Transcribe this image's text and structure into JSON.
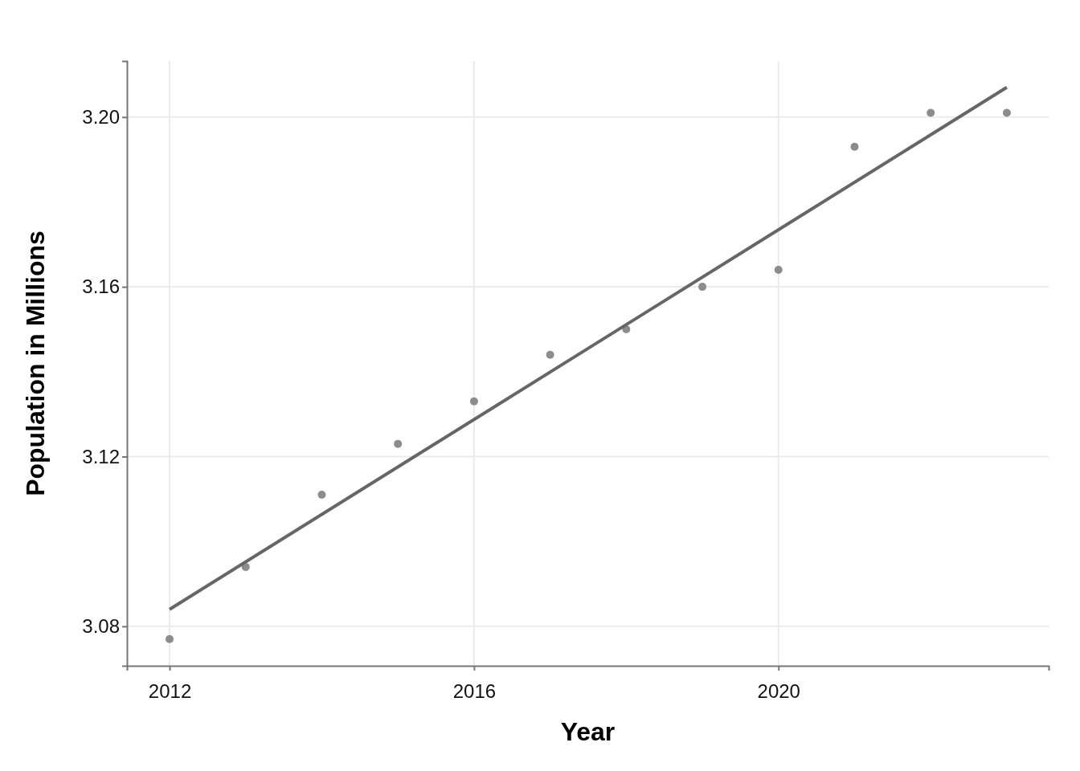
{
  "chart_data": {
    "type": "scatter",
    "xlabel": "Year",
    "ylabel": "Population in Millions",
    "x": [
      2012,
      2013,
      2014,
      2015,
      2016,
      2017,
      2018,
      2019,
      2020,
      2021,
      2022,
      2023
    ],
    "series": [
      {
        "color": "#8c8c8c",
        "marker": "circle",
        "values": [
          3.077,
          3.094,
          3.111,
          3.123,
          3.133,
          3.144,
          3.15,
          3.16,
          3.164,
          3.193,
          3.201,
          3.201
        ]
      },
      {
        "type": "line",
        "color": "#666666",
        "x": [
          2012,
          2023
        ],
        "values": [
          3.084,
          3.207
        ]
      }
    ],
    "xlim": [
      2011.44,
      2023.55
    ],
    "xticks": [
      2012,
      2016,
      2020
    ],
    "ylim": [
      3.0707,
      3.2132
    ],
    "yticks": [
      {
        "value": 3.08,
        "label": "3.08"
      },
      {
        "value": 3.12,
        "label": "3.12"
      },
      {
        "value": 3.16,
        "label": "3.16"
      },
      {
        "value": 3.2,
        "label": "3.20"
      }
    ],
    "grid": true,
    "line_style": "solid"
  }
}
